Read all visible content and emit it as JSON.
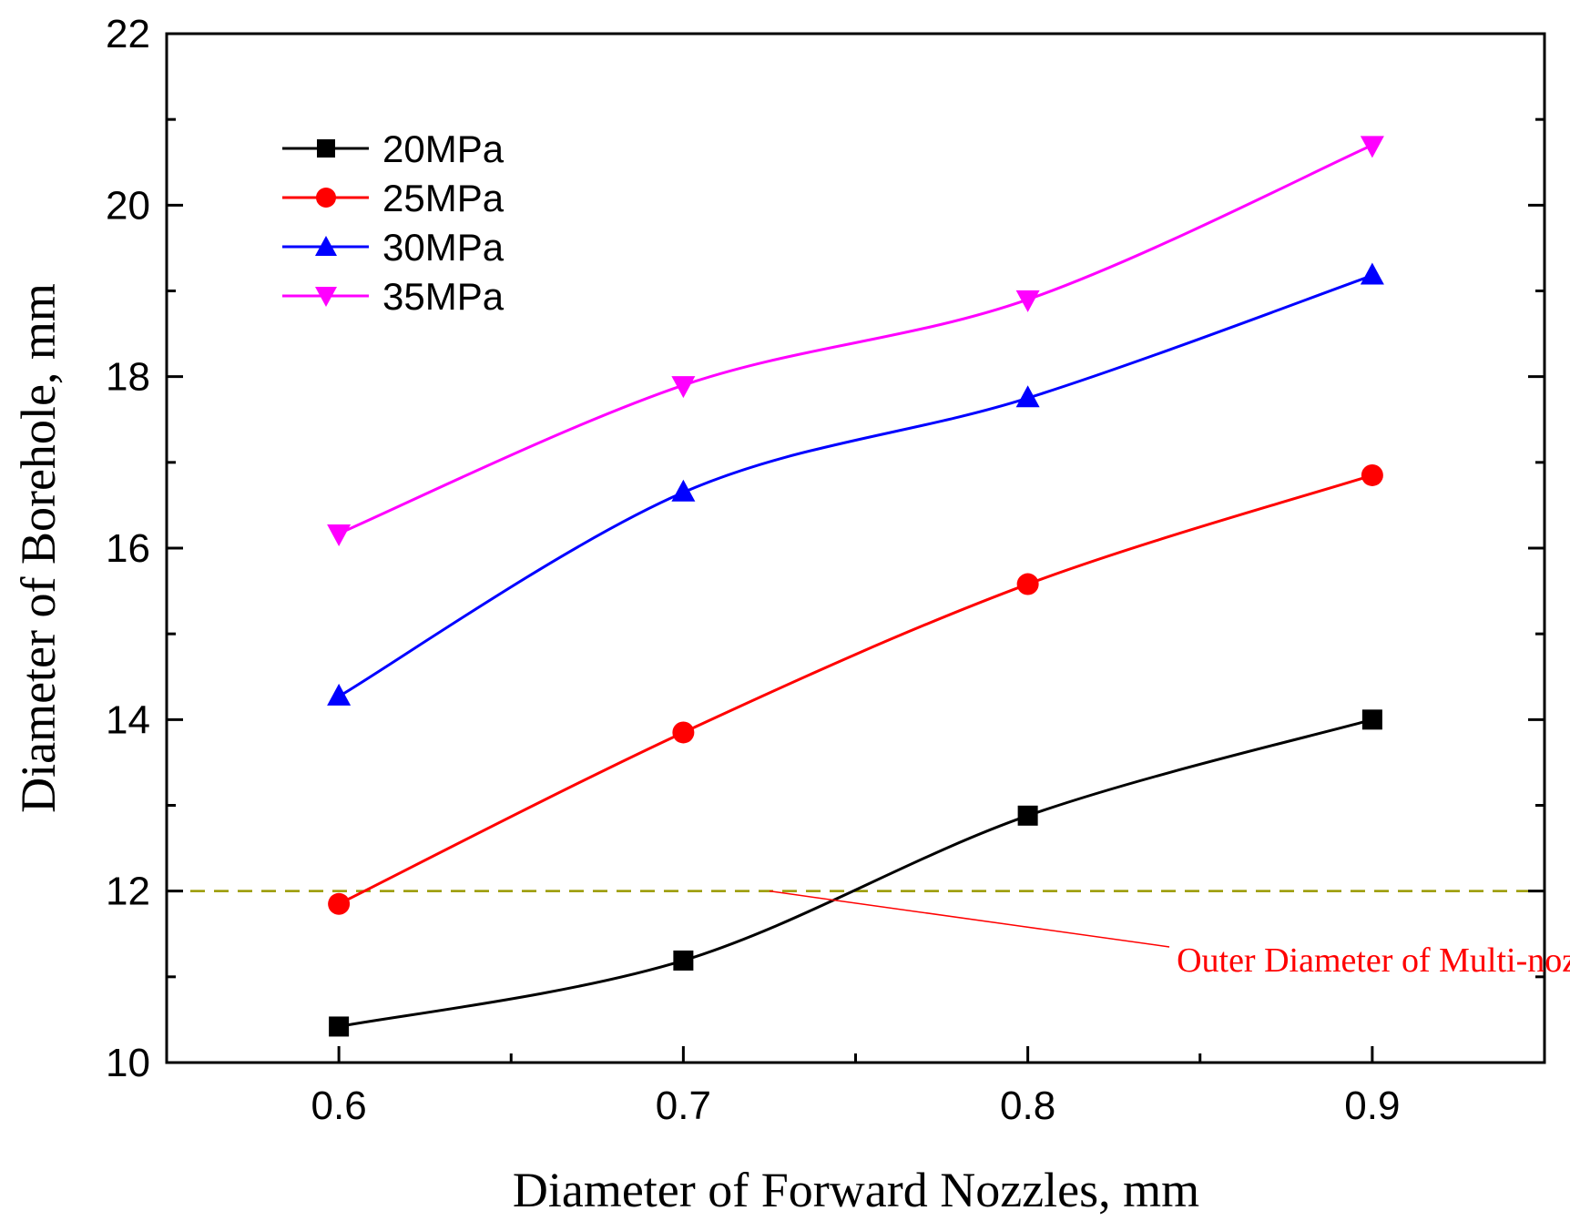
{
  "chart_data": {
    "type": "line",
    "title": "",
    "xlabel": "Diameter of Forward Nozzles, mm",
    "ylabel": "Diameter of Borehole, mm",
    "xlim": [
      0.55,
      0.95
    ],
    "ylim": [
      10,
      22
    ],
    "xticks": [
      0.6,
      0.7,
      0.8,
      0.9
    ],
    "xtick_labels": [
      "0.6",
      "0.7",
      "0.8",
      "0.9"
    ],
    "xminor": [
      0.65,
      0.75,
      0.85
    ],
    "yticks": [
      10,
      12,
      14,
      16,
      18,
      20,
      22
    ],
    "ytick_labels": [
      "10",
      "12",
      "14",
      "16",
      "18",
      "20",
      "22"
    ],
    "yminor": [
      11,
      13,
      15,
      17,
      19,
      21
    ],
    "x": [
      0.6,
      0.7,
      0.8,
      0.9
    ],
    "series": [
      {
        "name": "20MPa",
        "color": "#000000",
        "marker": "square",
        "values": [
          10.42,
          11.19,
          12.88,
          14.0
        ]
      },
      {
        "name": "25MPa",
        "color": "#ff0000",
        "marker": "circle",
        "values": [
          11.85,
          13.85,
          15.58,
          16.85
        ]
      },
      {
        "name": "30MPa",
        "color": "#0000ff",
        "marker": "triangle-up",
        "values": [
          14.27,
          16.65,
          17.75,
          19.18
        ]
      },
      {
        "name": "35MPa",
        "color": "#ff00ff",
        "marker": "triangle-down",
        "values": [
          16.17,
          17.9,
          18.9,
          20.7
        ]
      }
    ],
    "legend_position": "top-left",
    "reference_line": {
      "y": 12,
      "color": "#999900",
      "style": "dashed"
    },
    "annotation": {
      "text": "Outer Diameter of Multi-nozzle Bit",
      "color": "#ff0000",
      "points_to": {
        "x": 0.725,
        "y": 12
      },
      "text_at": {
        "x": 0.775,
        "y": 11.2
      }
    }
  }
}
